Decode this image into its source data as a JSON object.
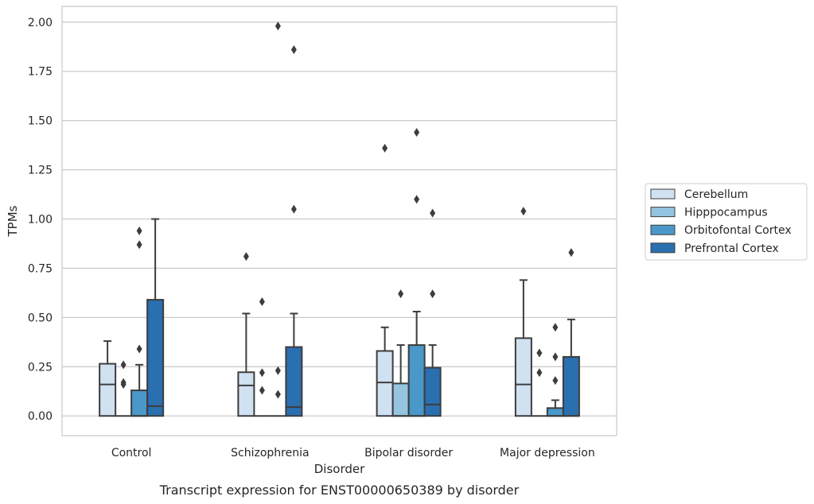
{
  "chart_data": {
    "type": "box",
    "caption": "Transcript expression for ENST00000650389 by disorder",
    "xlabel": "Disorder",
    "ylabel": "TPMs",
    "ylim": [
      -0.1,
      2.08
    ],
    "yticks": [
      "0.00",
      "0.25",
      "0.50",
      "0.75",
      "1.00",
      "1.25",
      "1.50",
      "1.75",
      "2.00"
    ],
    "ytick_values": [
      0,
      0.25,
      0.5,
      0.75,
      1.0,
      1.25,
      1.5,
      1.75,
      2.0
    ],
    "grid": "horizontal",
    "legend_position": "right",
    "categories": [
      "Control",
      "Schizophrenia",
      "Bipolar disorder",
      "Major depression"
    ],
    "series": [
      {
        "name": "Cerebellum",
        "color": "#d0e1f2",
        "boxes": [
          {
            "q1": 0.0,
            "median": 0.16,
            "q3": 0.265,
            "whisker_low": 0.0,
            "whisker_high": 0.38,
            "outliers": []
          },
          {
            "q1": 0.0,
            "median": 0.155,
            "q3": 0.222,
            "whisker_low": 0.0,
            "whisker_high": 0.52,
            "outliers": [
              0.81
            ]
          },
          {
            "q1": 0.0,
            "median": 0.17,
            "q3": 0.33,
            "whisker_low": 0.0,
            "whisker_high": 0.45,
            "outliers": [
              1.36
            ]
          },
          {
            "q1": 0.0,
            "median": 0.16,
            "q3": 0.395,
            "whisker_low": 0.0,
            "whisker_high": 0.69,
            "outliers": [
              1.04
            ]
          }
        ]
      },
      {
        "name": "Hipppocampus",
        "color": "#94c4df",
        "boxes": [
          {
            "q1": 0.0,
            "median": 0.0,
            "q3": 0.0,
            "whisker_low": 0.0,
            "whisker_high": 0.0,
            "outliers": [
              0.26,
              0.17,
              0.16
            ]
          },
          {
            "q1": 0.0,
            "median": 0.0,
            "q3": 0.0,
            "whisker_low": 0.0,
            "whisker_high": 0.0,
            "outliers": [
              0.58,
              0.22,
              0.13
            ]
          },
          {
            "q1": 0.0,
            "median": 0.0,
            "q3": 0.165,
            "whisker_low": 0.0,
            "whisker_high": 0.36,
            "outliers": [
              0.62
            ]
          },
          {
            "q1": 0.0,
            "median": 0.0,
            "q3": 0.0,
            "whisker_low": 0.0,
            "whisker_high": 0.0,
            "outliers": [
              0.32,
              0.22
            ]
          }
        ]
      },
      {
        "name": "Orbitofontal Cortex",
        "color": "#4a98c9",
        "boxes": [
          {
            "q1": 0.0,
            "median": 0.0,
            "q3": 0.13,
            "whisker_low": 0.0,
            "whisker_high": 0.26,
            "outliers": [
              0.94,
              0.87,
              0.34
            ]
          },
          {
            "q1": 0.0,
            "median": 0.0,
            "q3": 0.0,
            "whisker_low": 0.0,
            "whisker_high": 0.0,
            "outliers": [
              1.98,
              0.23,
              0.11
            ]
          },
          {
            "q1": 0.0,
            "median": 0.0,
            "q3": 0.36,
            "whisker_low": 0.0,
            "whisker_high": 0.53,
            "outliers": [
              1.44,
              1.1
            ]
          },
          {
            "q1": 0.0,
            "median": 0.0,
            "q3": 0.04,
            "whisker_low": 0.0,
            "whisker_high": 0.08,
            "outliers": [
              0.45,
              0.3,
              0.18
            ]
          }
        ]
      },
      {
        "name": "Prefrontal Cortex",
        "color": "#2a6fb0",
        "boxes": [
          {
            "q1": 0.0,
            "median": 0.05,
            "q3": 0.59,
            "whisker_low": 0.0,
            "whisker_high": 1.0,
            "outliers": []
          },
          {
            "q1": 0.0,
            "median": 0.045,
            "q3": 0.35,
            "whisker_low": 0.0,
            "whisker_high": 0.52,
            "outliers": [
              1.86,
              1.05
            ]
          },
          {
            "q1": 0.0,
            "median": 0.058,
            "q3": 0.245,
            "whisker_low": 0.0,
            "whisker_high": 0.36,
            "outliers": [
              1.03,
              0.62
            ]
          },
          {
            "q1": 0.0,
            "median": 0.0,
            "q3": 0.3,
            "whisker_low": 0.0,
            "whisker_high": 0.49,
            "outliers": [
              0.83
            ]
          }
        ]
      }
    ]
  }
}
